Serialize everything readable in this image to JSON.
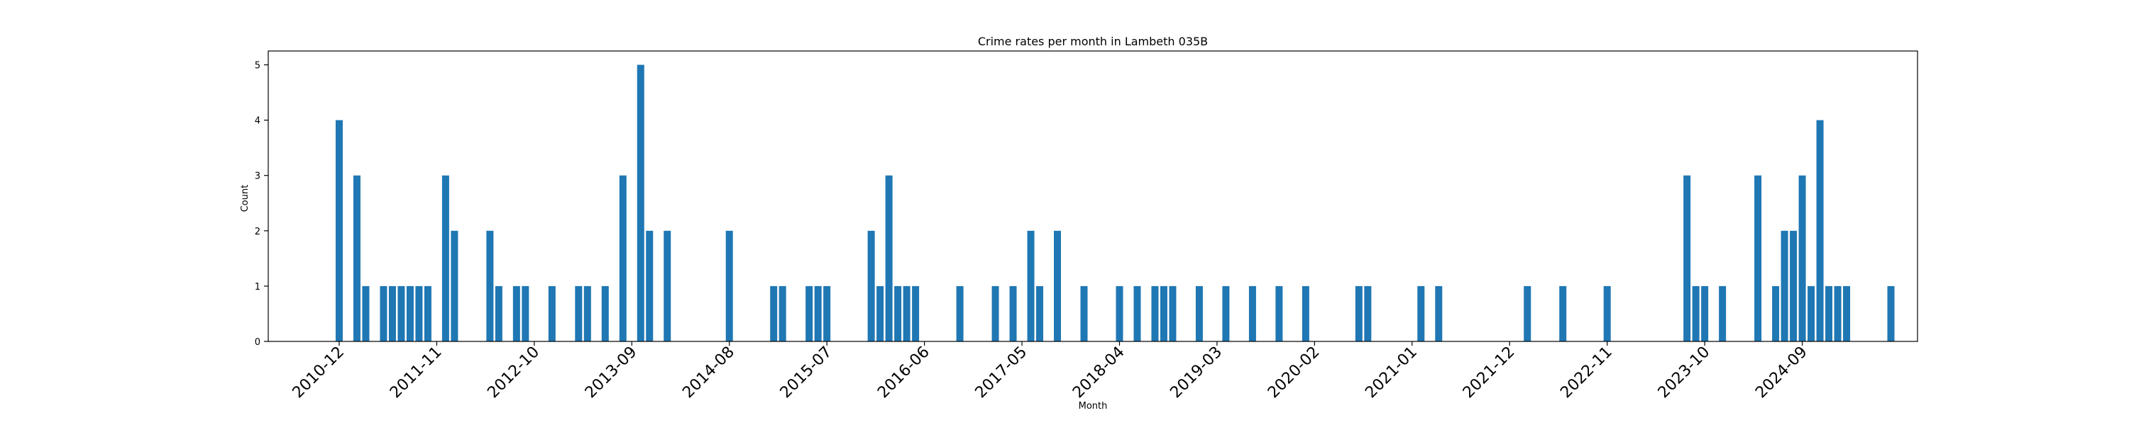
{
  "chart_data": {
    "type": "bar",
    "title": "Crime rates per month in Lambeth 035B",
    "xlabel": "Month",
    "ylabel": "Count",
    "ylim": [
      0,
      5.25
    ],
    "yticks": [
      0,
      1,
      2,
      3,
      4,
      5
    ],
    "xticks": [
      "2010-12",
      "2011-11",
      "2012-10",
      "2013-09",
      "2014-08",
      "2015-07",
      "2016-06",
      "2017-05",
      "2018-04",
      "2019-03",
      "2020-02",
      "2021-01",
      "2021-12",
      "2022-11",
      "2023-10",
      "2024-09"
    ],
    "x_range": [
      "2010-04",
      "2025-10"
    ],
    "grid": false,
    "color": "#1f77b4",
    "points": [
      [
        "2010-12",
        4
      ],
      [
        "2011-02",
        3
      ],
      [
        "2011-03",
        1
      ],
      [
        "2011-05",
        1
      ],
      [
        "2011-06",
        1
      ],
      [
        "2011-07",
        1
      ],
      [
        "2011-08",
        1
      ],
      [
        "2011-09",
        1
      ],
      [
        "2011-10",
        1
      ],
      [
        "2011-12",
        3
      ],
      [
        "2012-01",
        2
      ],
      [
        "2012-05",
        2
      ],
      [
        "2012-06",
        1
      ],
      [
        "2012-08",
        1
      ],
      [
        "2012-09",
        1
      ],
      [
        "2012-12",
        1
      ],
      [
        "2013-03",
        1
      ],
      [
        "2013-04",
        1
      ],
      [
        "2013-06",
        1
      ],
      [
        "2013-08",
        3
      ],
      [
        "2013-10",
        5
      ],
      [
        "2013-11",
        2
      ],
      [
        "2014-01",
        2
      ],
      [
        "2014-08",
        2
      ],
      [
        "2015-01",
        1
      ],
      [
        "2015-02",
        1
      ],
      [
        "2015-05",
        1
      ],
      [
        "2015-06",
        1
      ],
      [
        "2015-07",
        1
      ],
      [
        "2015-12",
        2
      ],
      [
        "2016-01",
        1
      ],
      [
        "2016-02",
        3
      ],
      [
        "2016-03",
        1
      ],
      [
        "2016-04",
        1
      ],
      [
        "2016-05",
        1
      ],
      [
        "2016-10",
        1
      ],
      [
        "2017-02",
        1
      ],
      [
        "2017-04",
        1
      ],
      [
        "2017-06",
        2
      ],
      [
        "2017-07",
        1
      ],
      [
        "2017-09",
        2
      ],
      [
        "2017-12",
        1
      ],
      [
        "2018-04",
        1
      ],
      [
        "2018-06",
        1
      ],
      [
        "2018-08",
        1
      ],
      [
        "2018-09",
        1
      ],
      [
        "2018-10",
        1
      ],
      [
        "2019-01",
        1
      ],
      [
        "2019-04",
        1
      ],
      [
        "2019-07",
        1
      ],
      [
        "2019-10",
        1
      ],
      [
        "2020-01",
        1
      ],
      [
        "2020-07",
        1
      ],
      [
        "2020-08",
        1
      ],
      [
        "2021-02",
        1
      ],
      [
        "2021-04",
        1
      ],
      [
        "2022-02",
        1
      ],
      [
        "2022-06",
        1
      ],
      [
        "2022-11",
        1
      ],
      [
        "2023-08",
        3
      ],
      [
        "2023-09",
        1
      ],
      [
        "2023-10",
        1
      ],
      [
        "2023-12",
        1
      ],
      [
        "2024-04",
        3
      ],
      [
        "2024-06",
        1
      ],
      [
        "2024-07",
        2
      ],
      [
        "2024-08",
        2
      ],
      [
        "2024-09",
        3
      ],
      [
        "2024-10",
        1
      ],
      [
        "2024-11",
        4
      ],
      [
        "2024-12",
        1
      ],
      [
        "2025-01",
        1
      ],
      [
        "2025-02",
        1
      ],
      [
        "2025-07",
        1
      ]
    ]
  }
}
